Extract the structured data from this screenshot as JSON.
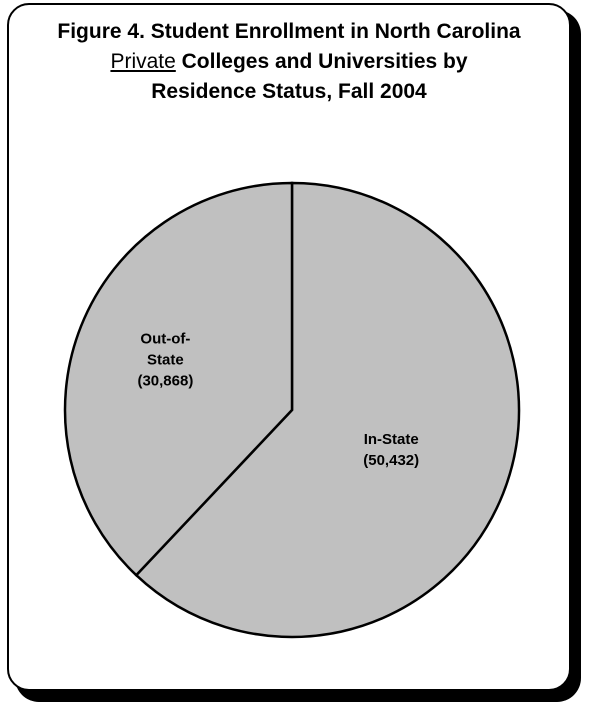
{
  "chart_data": {
    "type": "pie",
    "title_line1": "Figure 4.  Student Enrollment in North Carolina",
    "title_line2_underlined": "Private",
    "title_line2_rest": " Colleges and Universities by",
    "title_line3": "Residence Status, Fall 2004",
    "slices": [
      {
        "label_lines": [
          "In-State",
          "(50,432)"
        ],
        "value": 50432,
        "color": "#c0c0c0"
      },
      {
        "label_lines": [
          "Out-of-",
          "State",
          "(30,868)"
        ],
        "value": 30868,
        "color": "#c0c0c0"
      }
    ],
    "start_angle": "12 o'clock",
    "direction": "clockwise",
    "legend": "none"
  }
}
